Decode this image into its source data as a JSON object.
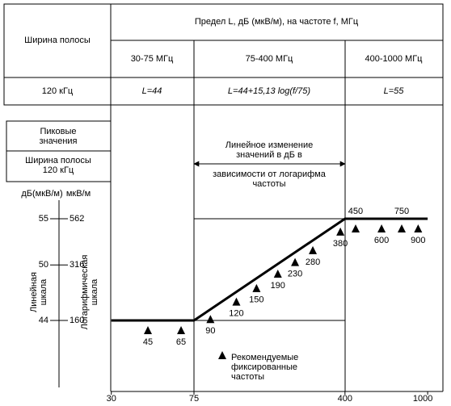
{
  "table": {
    "header": "Предел L, дБ (мкВ/м), на частоте f, МГц",
    "corner": "Ширина полосы",
    "ranges": [
      "30-75 МГц",
      "75-400 МГц",
      "400-1000 МГц"
    ],
    "bandwidth": "120 кГц",
    "limits": [
      "L=44",
      "L=44+15,13 log(f/75)",
      "L=55"
    ]
  },
  "left_panel": {
    "peak": [
      "Пиковые",
      "значения"
    ],
    "bandwidth": [
      "Ширина полосы",
      "120 кГц"
    ],
    "db_unit": "дБ(мкВ/м)",
    "uv_unit": "мкВ/м",
    "linear_scale": [
      "Линейная",
      "шкала"
    ],
    "log_scale": [
      "Логарифмическая",
      "шкала"
    ],
    "ticks": [
      {
        "db": 55,
        "uv": 562
      },
      {
        "db": 50,
        "uv": 316
      },
      {
        "db": 44,
        "uv": 160
      }
    ]
  },
  "x_ticks": [
    30,
    75,
    400,
    1000
  ],
  "limit_line": [
    {
      "f": 30,
      "db": 44
    },
    {
      "f": 75,
      "db": 44
    },
    {
      "f": 400,
      "db": 55
    },
    {
      "f": 1000,
      "db": 55
    }
  ],
  "annotation": [
    "Линейное изменение",
    "значений в дБ в",
    "зависимости от логарифма",
    "частоты"
  ],
  "markers": [
    45,
    65,
    90,
    120,
    150,
    190,
    230,
    280,
    380,
    450,
    600,
    750,
    900
  ],
  "legend": [
    "Рекомендуемые",
    "фиксированные",
    "частоты"
  ]
}
